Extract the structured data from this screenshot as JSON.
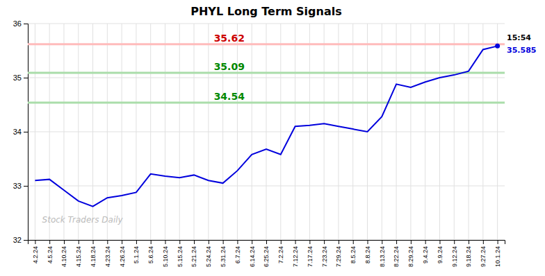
{
  "chart_data": {
    "type": "line",
    "title": "PHYL Long Term Signals",
    "categories": [
      "4.2.24",
      "4.5.24",
      "4.10.24",
      "4.15.24",
      "4.18.24",
      "4.23.24",
      "4.26.24",
      "5.1.24",
      "5.6.24",
      "5.10.24",
      "5.15.24",
      "5.21.24",
      "5.24.24",
      "5.31.24",
      "6.7.24",
      "6.14.24",
      "6.25.24",
      "7.2.24",
      "7.12.24",
      "7.17.24",
      "7.23.24",
      "7.29.24",
      "8.5.24",
      "8.8.24",
      "8.13.24",
      "8.22.24",
      "8.29.24",
      "9.4.24",
      "9.9.24",
      "9.12.24",
      "9.18.24",
      "9.27.24",
      "10.1.24"
    ],
    "values": [
      33.1,
      33.12,
      32.92,
      32.72,
      32.62,
      32.78,
      32.82,
      32.88,
      33.22,
      33.18,
      33.15,
      33.2,
      33.1,
      33.05,
      33.28,
      33.58,
      33.68,
      33.58,
      34.1,
      34.12,
      34.15,
      34.1,
      34.05,
      34.0,
      34.28,
      34.88,
      34.82,
      34.92,
      35.0,
      35.05,
      35.12,
      35.52,
      35.585
    ],
    "color": "#0000dd",
    "ylim": [
      32,
      36
    ],
    "yticks": [
      32,
      33,
      34,
      35,
      36
    ],
    "grid": true,
    "reference_lines": [
      {
        "value": 35.62,
        "color": "#ffbbbb",
        "label": "35.62",
        "label_color": "#cc0000"
      },
      {
        "value": 35.09,
        "color": "#aaddaa",
        "label": "35.09",
        "label_color": "#008800"
      },
      {
        "value": 34.54,
        "color": "#aaddaa",
        "label": "34.54",
        "label_color": "#008800"
      }
    ],
    "last_point": {
      "time": "15:54",
      "price": 35.585
    },
    "watermark": "Stock Traders Daily"
  }
}
